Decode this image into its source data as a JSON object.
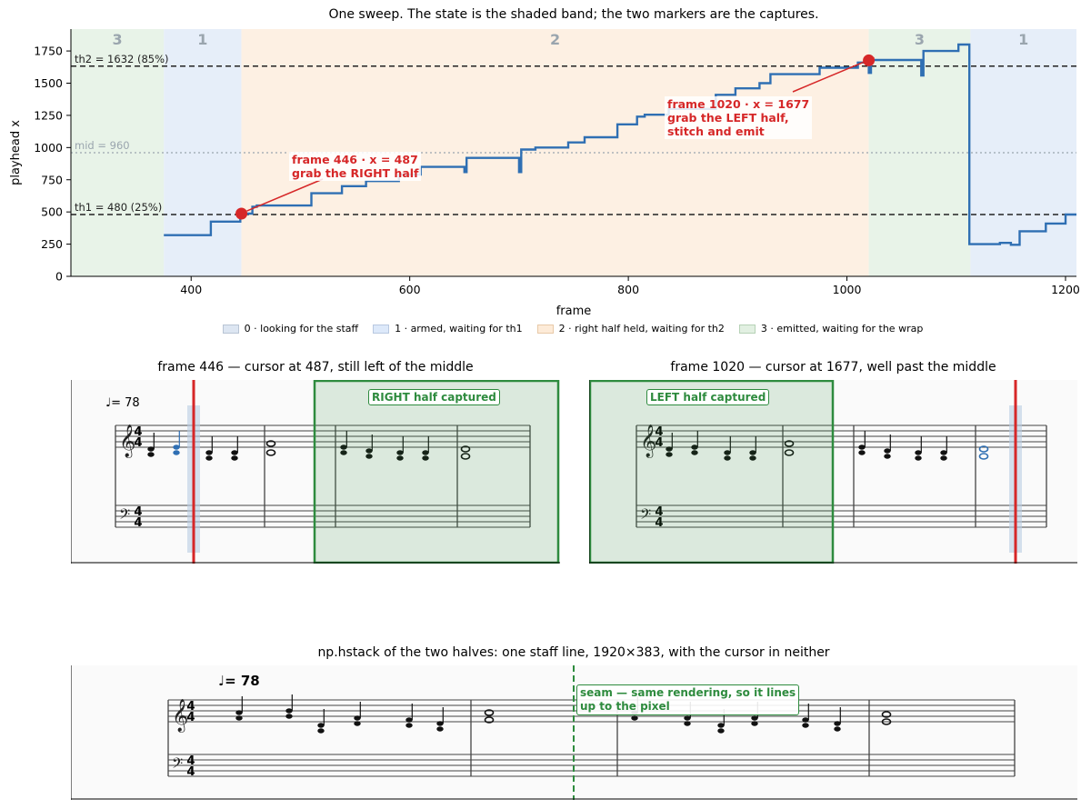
{
  "chart_data": [
    {
      "type": "line",
      "title": "One sweep. The state is the shaded band; the two markers are the captures.",
      "xlabel": "frame",
      "ylabel": "playhead x",
      "xlim": [
        290,
        1210
      ],
      "ylim": [
        0,
        1920
      ],
      "xticks": [
        400,
        600,
        800,
        1000,
        1200
      ],
      "yticks": [
        0,
        250,
        500,
        750,
        1000,
        1250,
        1500,
        1750
      ],
      "grid": false,
      "bands": [
        {
          "x0": 290,
          "x1": 375,
          "state": "3"
        },
        {
          "x0": 375,
          "x1": 446,
          "state": "1"
        },
        {
          "x0": 446,
          "x1": 1020,
          "state": "2"
        },
        {
          "x0": 1020,
          "x1": 1113,
          "state": "3"
        },
        {
          "x0": 1113,
          "x1": 1210,
          "state": "1"
        }
      ],
      "thresholds": [
        {
          "value": 1632,
          "label": "th2 = 1632  (85%)",
          "style": "dashed",
          "color": "#222222"
        },
        {
          "value": 960,
          "label": "mid = 960",
          "style": "dotted",
          "color": "#9aa5ae"
        },
        {
          "value": 480,
          "label": "th1 = 480  (25%)",
          "style": "dashed",
          "color": "#222222"
        }
      ],
      "series": [
        {
          "color": "#2f6fb3",
          "segments": [
            [
              [
                375,
                320
              ],
              [
                418,
                320
              ],
              [
                418,
                425
              ],
              [
                445,
                425
              ],
              [
                445,
                487
              ],
              [
                456,
                487
              ],
              [
                456,
                540
              ],
              [
                460,
                540
              ],
              [
                460,
                550
              ],
              [
                510,
                550
              ],
              [
                510,
                645
              ],
              [
                538,
                645
              ],
              [
                538,
                700
              ],
              [
                560,
                700
              ],
              [
                560,
                740
              ],
              [
                590,
                740
              ],
              [
                590,
                790
              ],
              [
                610,
                790
              ],
              [
                610,
                850
              ],
              [
                650,
                850
              ],
              [
                650,
                810
              ],
              [
                652,
                810
              ],
              [
                652,
                920
              ],
              [
                700,
                920
              ],
              [
                700,
                810
              ],
              [
                702,
                810
              ],
              [
                702,
                985
              ],
              [
                715,
                985
              ],
              [
                715,
                1000
              ],
              [
                745,
                1000
              ],
              [
                745,
                1040
              ],
              [
                760,
                1040
              ],
              [
                760,
                1080
              ],
              [
                790,
                1080
              ],
              [
                790,
                1180
              ],
              [
                808,
                1180
              ],
              [
                808,
                1240
              ],
              [
                815,
                1240
              ],
              [
                815,
                1255
              ],
              [
                837,
                1255
              ],
              [
                837,
                1300
              ],
              [
                880,
                1300
              ],
              [
                880,
                1410
              ],
              [
                898,
                1410
              ],
              [
                898,
                1460
              ],
              [
                920,
                1460
              ],
              [
                920,
                1500
              ],
              [
                930,
                1500
              ],
              [
                930,
                1570
              ],
              [
                975,
                1570
              ],
              [
                975,
                1620
              ],
              [
                1010,
                1620
              ],
              [
                1010,
                1660
              ],
              [
                1019,
                1660
              ],
              [
                1019,
                1677
              ],
              [
                1020,
                1677
              ],
              [
                1020,
                1580
              ],
              [
                1022,
                1580
              ],
              [
                1022,
                1680
              ],
              [
                1068,
                1680
              ],
              [
                1068,
                1560
              ],
              [
                1070,
                1560
              ],
              [
                1070,
                1750
              ],
              [
                1102,
                1750
              ],
              [
                1102,
                1800
              ],
              [
                1112,
                1800
              ],
              [
                1112,
                250
              ],
              [
                1140,
                250
              ],
              [
                1140,
                260
              ],
              [
                1150,
                260
              ],
              [
                1150,
                245
              ],
              [
                1158,
                245
              ],
              [
                1158,
                350
              ],
              [
                1182,
                350
              ],
              [
                1182,
                410
              ],
              [
                1200,
                410
              ],
              [
                1200,
                480
              ],
              [
                1210,
                480
              ]
            ]
          ]
        }
      ],
      "captures": [
        {
          "x": 446,
          "y": 487,
          "label": "frame 446 · x = 487\ngrab the RIGHT half"
        },
        {
          "x": 1020,
          "y": 1677,
          "label": "frame 1020 · x = 1677\ngrab the LEFT half,\nstitch and emit"
        }
      ],
      "legend": {
        "placement": "below",
        "entries": [
          {
            "label": "0 · looking for the staff",
            "color": "#dde6f2"
          },
          {
            "label": "1 · armed, waiting for th1",
            "color": "#dde9fa"
          },
          {
            "label": "2 · right half held, waiting for th2",
            "color": "#fdebd8"
          },
          {
            "label": "3 · emitted, waiting for the wrap",
            "color": "#e2f0e2"
          }
        ]
      }
    }
  ],
  "colors": {
    "state0": "#e8eef6",
    "state1": "#e6eef9",
    "state2": "#fdf0e3",
    "state3": "#e8f3e8",
    "line": "#2f6fb3",
    "capture": "#d62728",
    "captured_box": "#2e8b3e",
    "band_text": "#9aa5ae"
  },
  "panels": {
    "left": {
      "title": "frame 446 — cursor at 487, still left of the middle",
      "badge": "RIGHT half captured",
      "tempo": "♩= 78"
    },
    "right": {
      "title": "frame 1020 — cursor at 1677, well past the middle",
      "badge": "LEFT half captured"
    },
    "bottom": {
      "title": "np.hstack of the two halves: one staff line, 1920×383, with the cursor in neither",
      "seam_label_1": "seam — same rendering, so it lines",
      "seam_label_2": "up to the pixel",
      "tempo": "♩= 78"
    }
  }
}
